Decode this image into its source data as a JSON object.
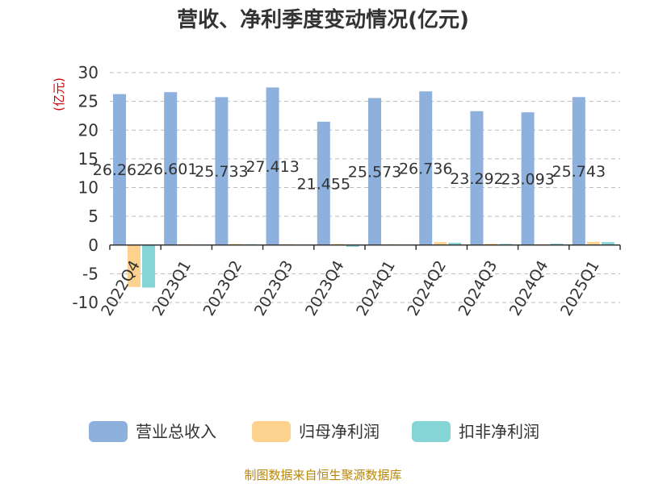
{
  "title": "营收、净利季度变动情况(亿元)",
  "footer": "制图数据来自恒生聚源数据库",
  "colors": {
    "title": "#333333",
    "axis_text": "#333333",
    "unit": "#cc0000",
    "grid": "#bbbbbb",
    "footer": "#b8860b"
  },
  "chart_data": {
    "type": "bar",
    "title": "营收、净利季度变动情况(亿元)",
    "ylabel": "(亿元)",
    "ylim": [
      -10,
      30
    ],
    "yticks": [
      30,
      25,
      20,
      15,
      10,
      5,
      0,
      -5,
      -10
    ],
    "grid": true,
    "legend_position": "bottom",
    "categories": [
      "2022Q4",
      "2023Q1",
      "2023Q2",
      "2023Q3",
      "2023Q4",
      "2024Q1",
      "2024Q2",
      "2024Q3",
      "2024Q4",
      "2025Q1"
    ],
    "series": [
      {
        "name": "营业总收入",
        "color": "#8eb0dc",
        "values": [
          26.262,
          26.601,
          25.733,
          27.413,
          21.455,
          25.573,
          26.736,
          23.292,
          23.093,
          25.743
        ],
        "labels": [
          "26.262",
          "26.601",
          "25.733",
          "27.413",
          "21.455",
          "25.573",
          "26.736",
          "23.292",
          "23.093",
          "25.743"
        ]
      },
      {
        "name": "归母净利润",
        "color": "#fcd28e",
        "values": [
          -7.3,
          0.15,
          0.2,
          0.15,
          0.2,
          0.15,
          0.5,
          0.25,
          0.15,
          0.55
        ]
      },
      {
        "name": "扣非净利润",
        "color": "#85d4d6",
        "values": [
          -7.4,
          0.1,
          0.15,
          0.1,
          -0.3,
          0.1,
          0.4,
          0.2,
          0.25,
          0.5
        ]
      }
    ]
  }
}
